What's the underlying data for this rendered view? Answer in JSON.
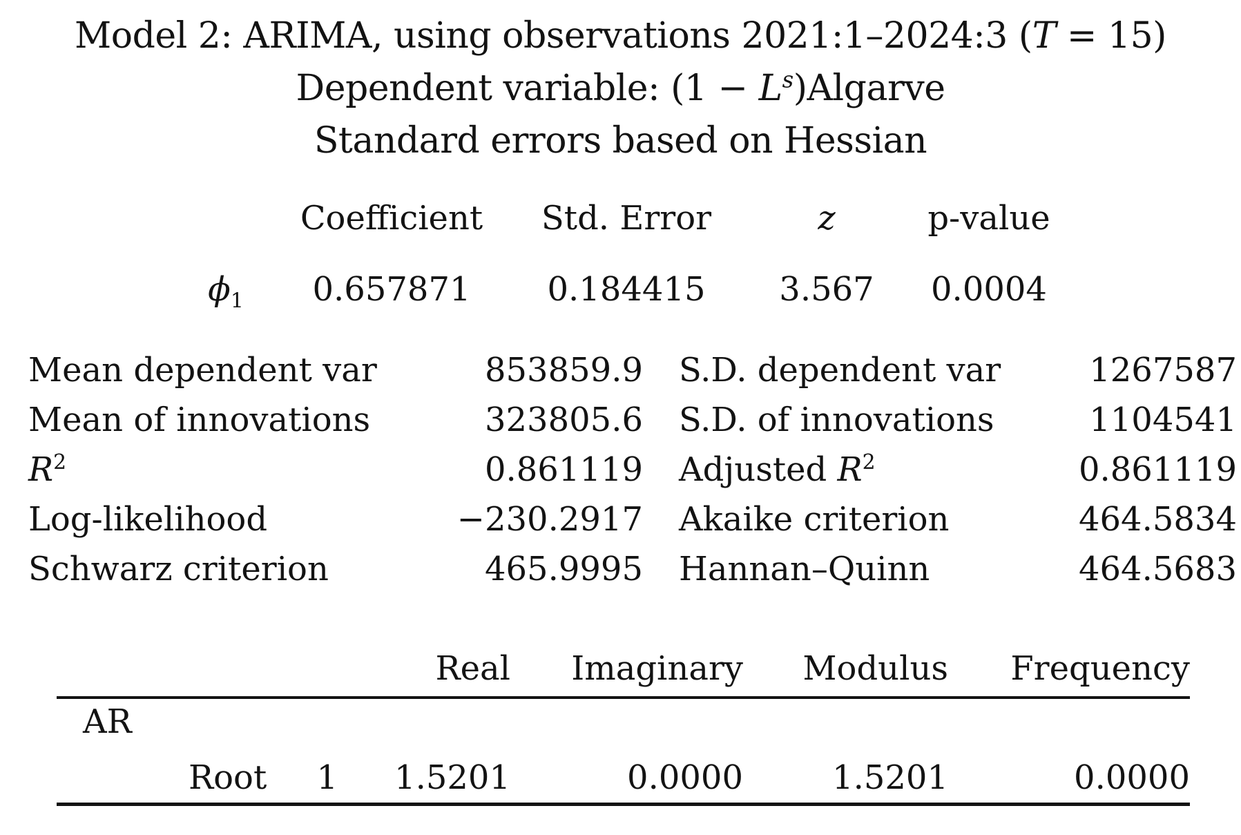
{
  "document": {
    "title": {
      "part1": "Model 2: ARIMA, using observations 2021:1–2024:3 (",
      "T_symbol": "T",
      "part2": " = 15)"
    },
    "dependent_variable_line": {
      "prefix": "Dependent variable: (1 − ",
      "L_symbol": "L",
      "s_superscript": "s",
      "suffix": ")Algarve"
    },
    "se_note": "Standard errors based on Hessian"
  },
  "coefficient_table": {
    "headers": {
      "coefficient": "Coefficient",
      "std_error": "Std. Error",
      "z": "z",
      "p_value": "p-value"
    },
    "rows": [
      {
        "param_symbol": "ϕ",
        "param_subscript": "1",
        "coefficient": "0.657871",
        "std_error": "0.184415",
        "z": "3.567",
        "p_value": "0.0004"
      }
    ]
  },
  "statistics": {
    "rows": [
      {
        "label_left": "Mean dependent var",
        "value_left": "853859.9",
        "label_right": "S.D. dependent var",
        "value_right": "1267587"
      },
      {
        "label_left": "Mean of innovations",
        "value_left": "323805.6",
        "label_right": "S.D. of innovations",
        "value_right": "1104541"
      },
      {
        "label_left_base": "R",
        "label_left_sup": "2",
        "value_left": "0.861119",
        "label_right_prefix": "Adjusted ",
        "label_right_base": "R",
        "label_right_sup": "2",
        "value_right": "0.861119"
      },
      {
        "label_left": "Log-likelihood",
        "value_left": "−230.2917",
        "label_right": "Akaike criterion",
        "value_right": "464.5834"
      },
      {
        "label_left": "Schwarz criterion",
        "value_left": "465.9995",
        "label_right": "Hannan–Quinn",
        "value_right": "464.5683"
      }
    ]
  },
  "roots_table": {
    "headers": {
      "real": "Real",
      "imaginary": "Imaginary",
      "modulus": "Modulus",
      "frequency": "Frequency"
    },
    "section_label": "AR",
    "rows": [
      {
        "label": "Root",
        "index": "1",
        "real": "1.5201",
        "imaginary": "0.0000",
        "modulus": "1.5201",
        "frequency": "0.0000"
      }
    ]
  }
}
